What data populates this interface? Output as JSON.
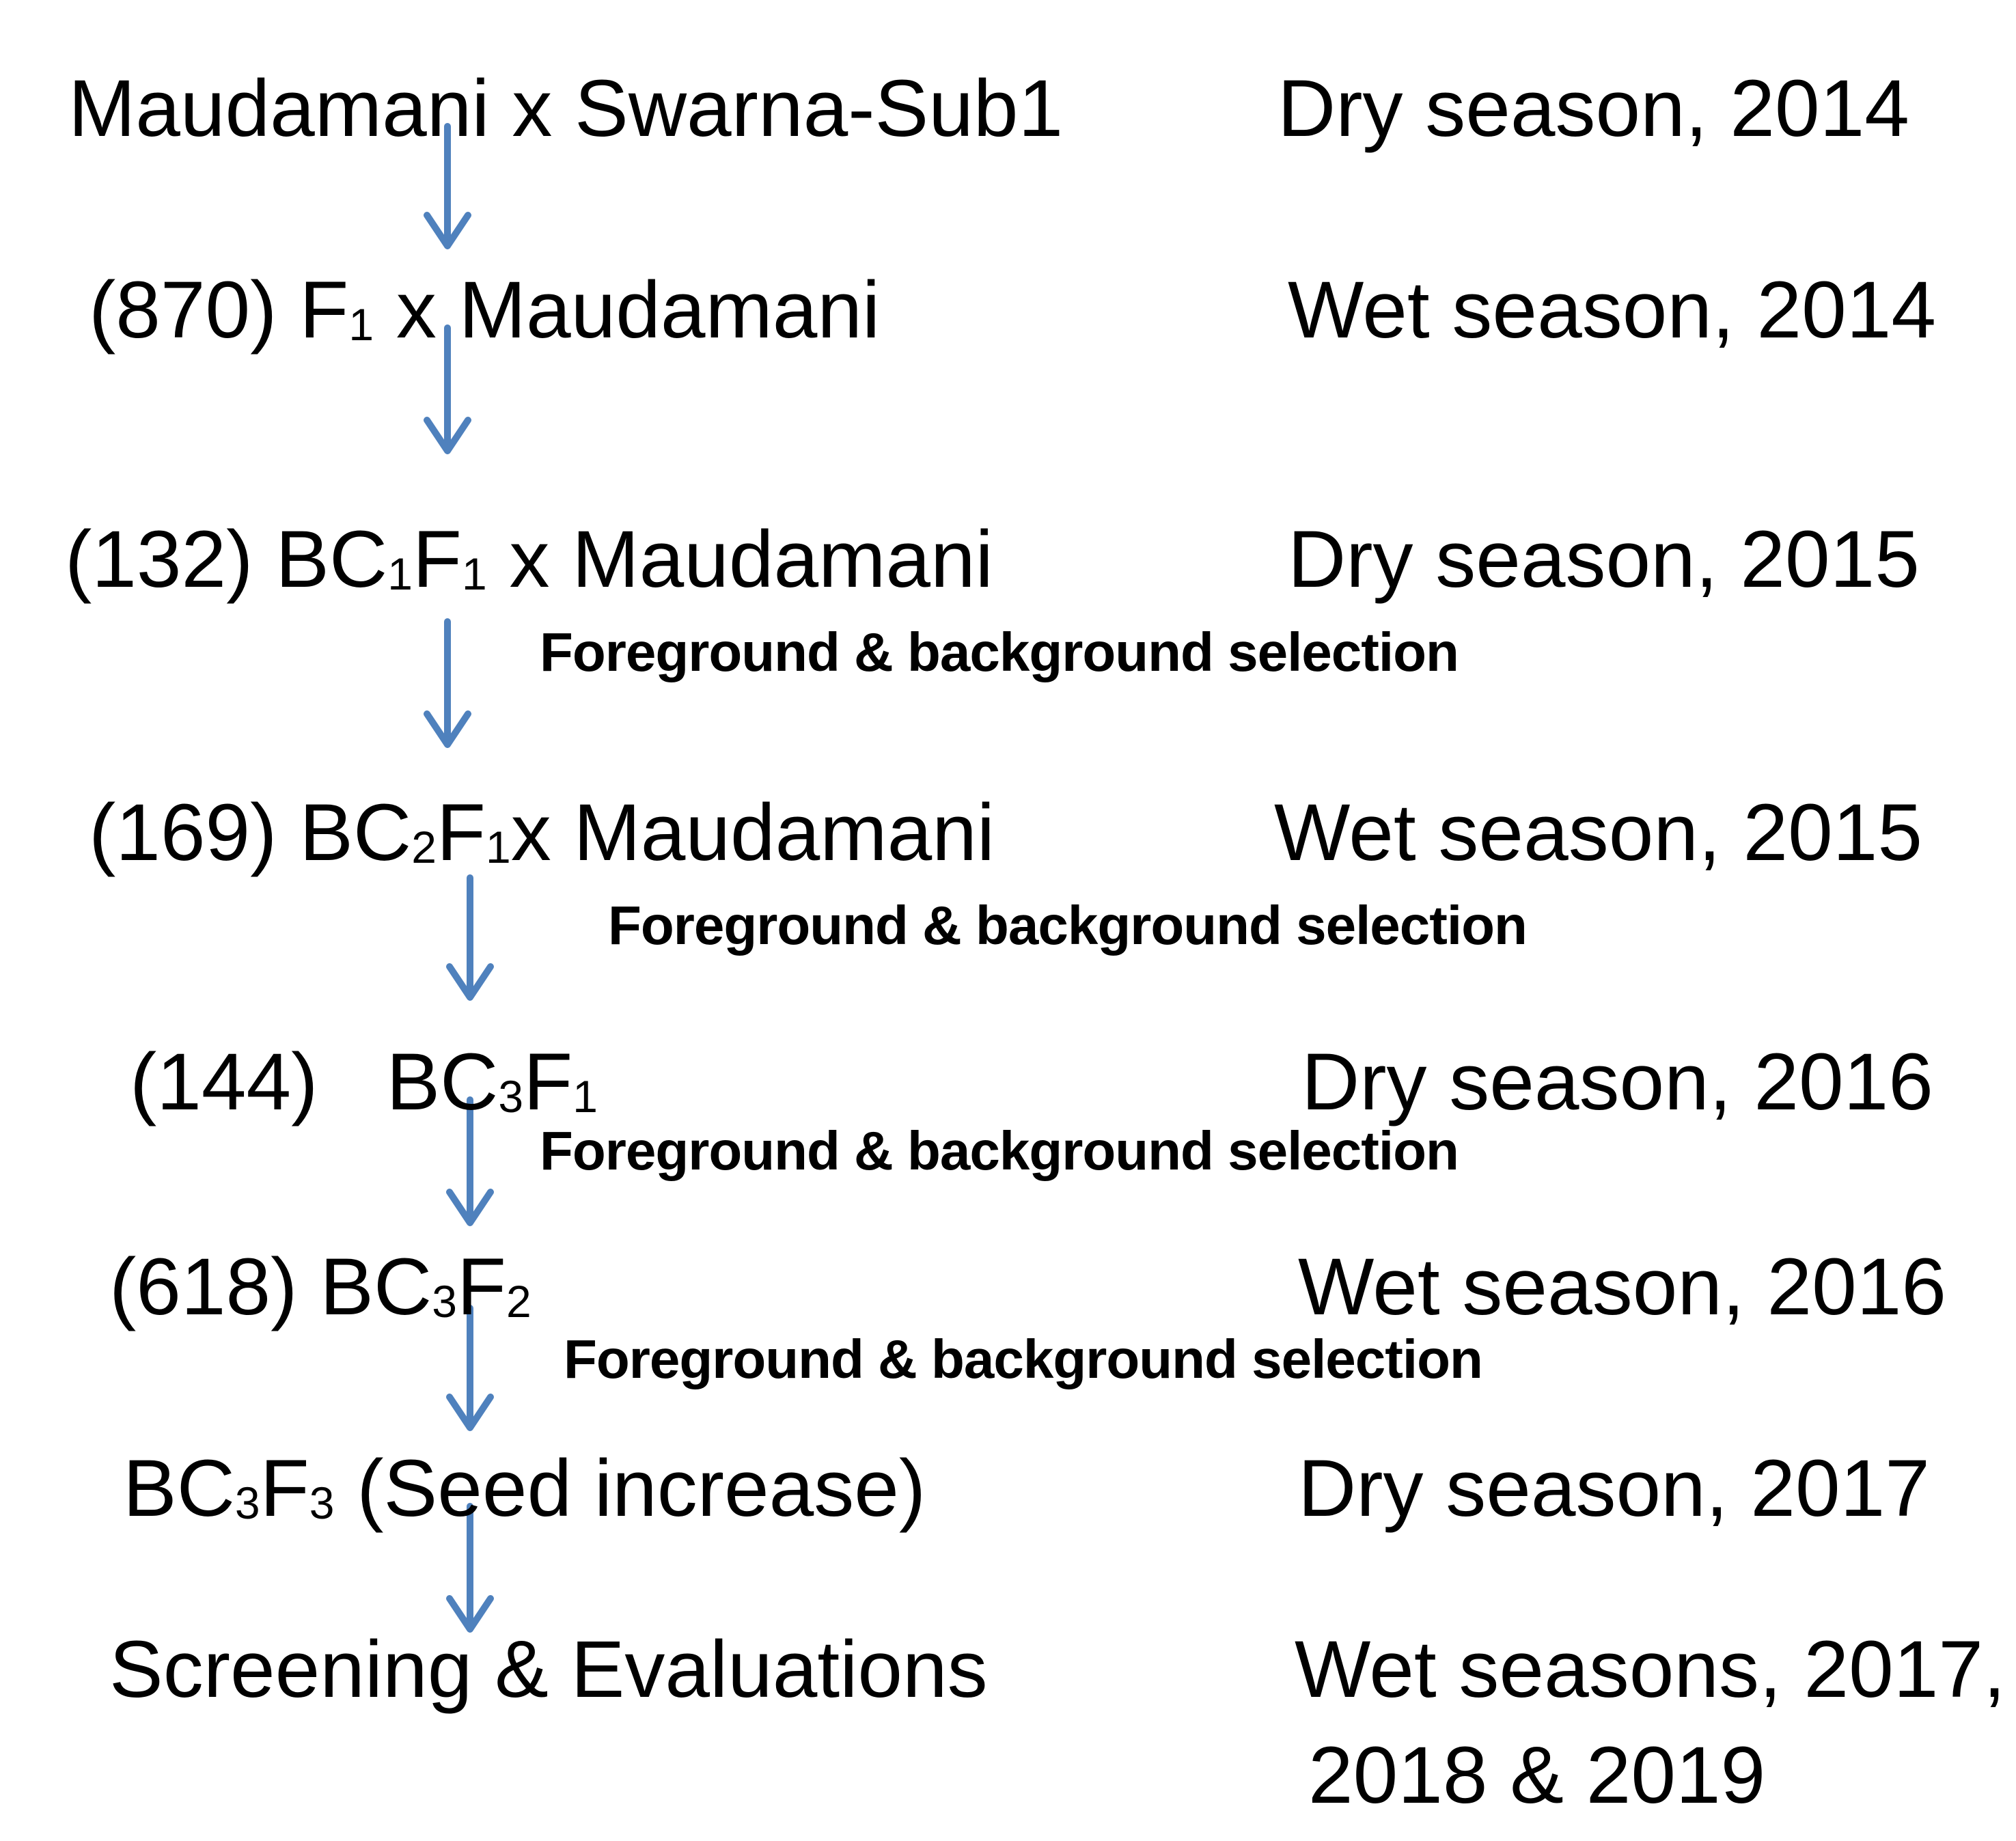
{
  "colors": {
    "arrow": "#4f81bd",
    "text": "#000000",
    "background": "#ffffff"
  },
  "stages": [
    {
      "label": "Maudamani x Swarna-Sub1",
      "season": "Dry  season, 2014"
    },
    {
      "count": "(870)",
      "pre": "F",
      "sub1": "1",
      "mid": "",
      "sub2": "",
      "post": " x Maudamani",
      "season": "Wet season, 2014"
    },
    {
      "count": "(132)",
      "pre": "BC",
      "sub1": "1",
      "mid": "F",
      "sub2": "1",
      "post": " x Maudamani",
      "season": "Dry season, 2015"
    },
    {
      "count": "(169)",
      "pre": "BC",
      "sub1": "2",
      "mid": "F",
      "sub2": "1",
      "post": "x Maudamani",
      "season": "Wet season, 2015"
    },
    {
      "count": "(144)",
      "pre": "BC",
      "sub1": "3",
      "mid": "F",
      "sub2": "1",
      "post": "",
      "season": "Dry season, 2016"
    },
    {
      "count": "(618)",
      "pre": "BC",
      "sub1": "3",
      "mid": "F",
      "sub2": "2",
      "post": "",
      "season": "Wet season, 2016"
    },
    {
      "count": "",
      "pre": "BC",
      "sub1": "3",
      "mid": "F",
      "sub2": "3",
      "post": " (Seed increase)",
      "season": "Dry season, 2017"
    },
    {
      "label": "Screening & Evaluations",
      "season_line1": "Wet seasons, 2017,",
      "season_line2": "2018 & 2019"
    }
  ],
  "selection_note": "Foreground & background selection"
}
